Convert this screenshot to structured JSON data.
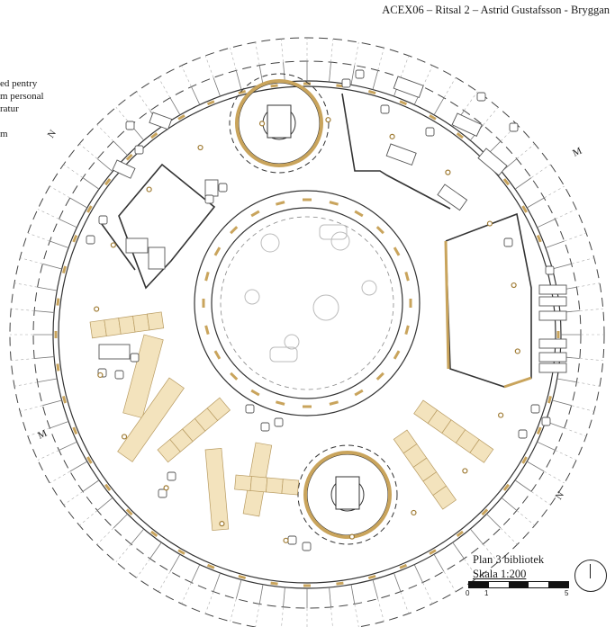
{
  "sheet": {
    "title": "ACEX06 – Ritsal 2 – Astrid Gustafsson - Bryggan"
  },
  "legend": {
    "lines": [
      "ed pentry",
      "m personal",
      "ratur",
      "",
      "m"
    ]
  },
  "plan": {
    "name": "Plan 3 bibliotek",
    "scale": "Skala 1:200",
    "scale_ticks": [
      "0",
      "1",
      "5"
    ],
    "section_markers": [
      "N",
      "M",
      "M",
      "N"
    ],
    "compass": "north-arrow-icon"
  },
  "colors": {
    "line": "#333333",
    "walls": "#c9a45c",
    "shelves": "#f3e3bd",
    "shelf_stroke": "#b89b61",
    "furniture": "#555555"
  }
}
